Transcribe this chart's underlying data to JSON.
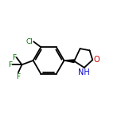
{
  "background_color": "#ffffff",
  "bond_color": "#000000",
  "text_color_blue": "#0000cc",
  "text_color_red": "#cc0000",
  "text_color_green": "#007700",
  "atom_Cl": "Cl",
  "atom_F1": "F",
  "atom_F2": "F",
  "atom_F3": "F",
  "atom_O": "O",
  "atom_NH": "NH",
  "wedge_color": "#000000",
  "figsize": [
    1.52,
    1.52
  ],
  "dpi": 100,
  "lw": 1.3
}
